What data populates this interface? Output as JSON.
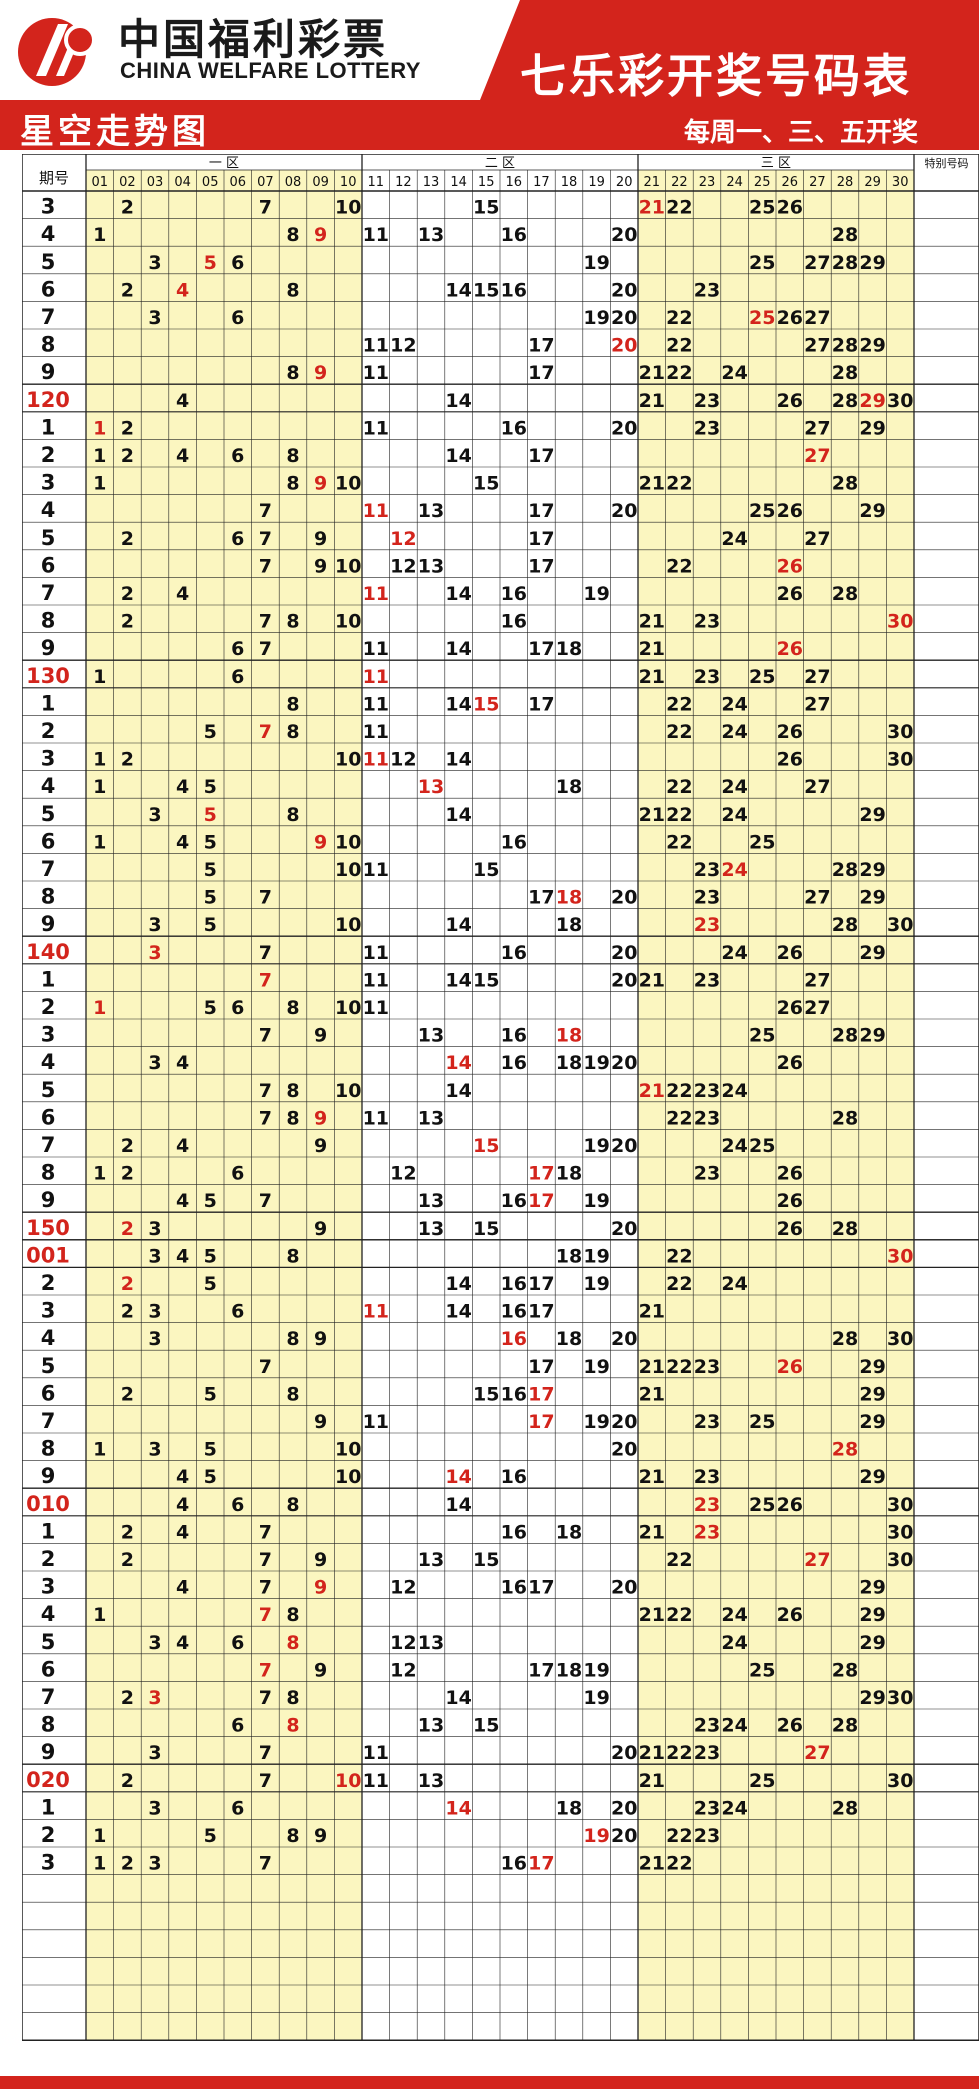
{
  "header": {
    "logo_cn": "中国福利彩票",
    "logo_en": "CHINA WELFARE LOTTERY",
    "title": "七乐彩开奖号码表",
    "schedule": "每周一、三、五开奖",
    "subtitle": "星空走势图"
  },
  "table": {
    "period_header": "期号",
    "zone_labels": [
      "一 区",
      "二 区",
      "三 区"
    ],
    "special_header": "特别号码",
    "column_numbers": [
      "01",
      "02",
      "03",
      "04",
      "05",
      "06",
      "07",
      "08",
      "09",
      "10",
      "11",
      "12",
      "13",
      "14",
      "15",
      "16",
      "17",
      "18",
      "19",
      "20",
      "21",
      "22",
      "23",
      "24",
      "25",
      "26",
      "27",
      "28",
      "29",
      "30"
    ],
    "rows": [
      {
        "p": "3",
        "n": [
          2,
          7,
          10,
          15,
          21,
          22,
          25,
          26
        ],
        "s": 21
      },
      {
        "p": "4",
        "n": [
          1,
          8,
          9,
          11,
          13,
          16,
          20,
          28
        ],
        "s": 9
      },
      {
        "p": "5",
        "n": [
          3,
          5,
          6,
          19,
          25,
          27,
          28,
          29
        ],
        "s": 5
      },
      {
        "p": "6",
        "n": [
          2,
          4,
          8,
          14,
          15,
          16,
          20,
          23
        ],
        "s": 4
      },
      {
        "p": "7",
        "n": [
          3,
          6,
          19,
          20,
          22,
          25,
          26,
          27
        ],
        "s": 25
      },
      {
        "p": "8",
        "n": [
          11,
          12,
          17,
          20,
          22,
          27,
          28,
          29
        ],
        "s": 20
      },
      {
        "p": "9",
        "n": [
          8,
          9,
          11,
          17,
          21,
          22,
          24,
          28
        ],
        "s": 9
      },
      {
        "p": "120",
        "n": [
          4,
          14,
          21,
          23,
          26,
          28,
          29,
          30
        ],
        "s": 29,
        "red": true
      },
      {
        "p": "1",
        "n": [
          1,
          2,
          11,
          16,
          20,
          23,
          27,
          29
        ],
        "s": 1
      },
      {
        "p": "2",
        "n": [
          1,
          2,
          4,
          6,
          8,
          14,
          17,
          27
        ],
        "s": 27
      },
      {
        "p": "3",
        "n": [
          1,
          8,
          9,
          10,
          15,
          21,
          22,
          28
        ],
        "s": 9
      },
      {
        "p": "4",
        "n": [
          7,
          11,
          13,
          17,
          20,
          25,
          26,
          29
        ],
        "s": 11
      },
      {
        "p": "5",
        "n": [
          2,
          6,
          7,
          9,
          12,
          17,
          24,
          27
        ],
        "s": 12
      },
      {
        "p": "6",
        "n": [
          7,
          9,
          10,
          12,
          13,
          17,
          22,
          26
        ],
        "s": 26
      },
      {
        "p": "7",
        "n": [
          2,
          4,
          11,
          14,
          16,
          19,
          26,
          28
        ],
        "s": 11
      },
      {
        "p": "8",
        "n": [
          2,
          7,
          8,
          10,
          16,
          21,
          23,
          30
        ],
        "s": 30
      },
      {
        "p": "9",
        "n": [
          6,
          7,
          11,
          14,
          17,
          18,
          21,
          26
        ],
        "s": 26
      },
      {
        "p": "130",
        "n": [
          1,
          6,
          11,
          21,
          23,
          25,
          27
        ],
        "s": 11,
        "red": true
      },
      {
        "p": "1",
        "n": [
          8,
          11,
          14,
          15,
          17,
          22,
          24,
          27
        ],
        "s": 15
      },
      {
        "p": "2",
        "n": [
          5,
          7,
          8,
          11,
          22,
          24,
          26,
          30
        ],
        "s": 7
      },
      {
        "p": "3",
        "n": [
          1,
          2,
          10,
          11,
          12,
          14,
          26,
          30
        ],
        "s": 11
      },
      {
        "p": "4",
        "n": [
          1,
          4,
          5,
          13,
          18,
          22,
          24,
          27
        ],
        "s": 13
      },
      {
        "p": "5",
        "n": [
          3,
          5,
          8,
          14,
          21,
          22,
          24,
          29
        ],
        "s": 5
      },
      {
        "p": "6",
        "n": [
          1,
          4,
          5,
          9,
          10,
          16,
          22,
          25
        ],
        "s": 9
      },
      {
        "p": "7",
        "n": [
          5,
          10,
          11,
          15,
          23,
          24,
          28,
          29
        ],
        "s": 24
      },
      {
        "p": "8",
        "n": [
          5,
          7,
          17,
          18,
          20,
          23,
          27,
          29
        ],
        "s": 18
      },
      {
        "p": "9",
        "n": [
          3,
          5,
          10,
          14,
          18,
          23,
          28,
          30
        ],
        "s": 23
      },
      {
        "p": "140",
        "n": [
          3,
          7,
          11,
          16,
          20,
          24,
          26,
          29
        ],
        "s": 3,
        "red": true
      },
      {
        "p": "1",
        "n": [
          7,
          11,
          14,
          15,
          20,
          21,
          23,
          27
        ],
        "s": 7
      },
      {
        "p": "2",
        "n": [
          1,
          5,
          6,
          8,
          10,
          11,
          26,
          27
        ],
        "s": 1
      },
      {
        "p": "3",
        "n": [
          7,
          9,
          13,
          16,
          18,
          25,
          28,
          29
        ],
        "s": 18
      },
      {
        "p": "4",
        "n": [
          3,
          4,
          14,
          16,
          18,
          19,
          20,
          26
        ],
        "s": 14
      },
      {
        "p": "5",
        "n": [
          7,
          8,
          10,
          14,
          21,
          22,
          23,
          24
        ],
        "s": 21
      },
      {
        "p": "6",
        "n": [
          7,
          8,
          9,
          11,
          13,
          22,
          23,
          28
        ],
        "s": 9
      },
      {
        "p": "7",
        "n": [
          2,
          4,
          9,
          15,
          19,
          20,
          24,
          25
        ],
        "s": 15
      },
      {
        "p": "8",
        "n": [
          1,
          2,
          6,
          12,
          17,
          18,
          23,
          26
        ],
        "s": 17
      },
      {
        "p": "9",
        "n": [
          4,
          5,
          7,
          13,
          16,
          17,
          19,
          26
        ],
        "s": 17
      },
      {
        "p": "150",
        "n": [
          2,
          3,
          9,
          13,
          15,
          20,
          26,
          28
        ],
        "s": 2,
        "red": true
      },
      {
        "p": "001",
        "n": [
          3,
          4,
          5,
          8,
          18,
          19,
          22,
          30
        ],
        "s": 30,
        "red": true
      },
      {
        "p": "2",
        "n": [
          2,
          5,
          14,
          16,
          17,
          19,
          22,
          24
        ],
        "s": 2
      },
      {
        "p": "3",
        "n": [
          2,
          3,
          6,
          11,
          14,
          16,
          17,
          21
        ],
        "s": 11
      },
      {
        "p": "4",
        "n": [
          3,
          8,
          9,
          16,
          18,
          20,
          28,
          30
        ],
        "s": 16
      },
      {
        "p": "5",
        "n": [
          7,
          17,
          19,
          21,
          22,
          23,
          26,
          29
        ],
        "s": 26
      },
      {
        "p": "6",
        "n": [
          2,
          5,
          8,
          15,
          16,
          17,
          21,
          29
        ],
        "s": 17
      },
      {
        "p": "7",
        "n": [
          9,
          11,
          17,
          19,
          20,
          23,
          25,
          29
        ],
        "s": 17
      },
      {
        "p": "8",
        "n": [
          1,
          3,
          5,
          10,
          20,
          28
        ],
        "s": 28
      },
      {
        "p": "9",
        "n": [
          4,
          5,
          10,
          14,
          16,
          21,
          23,
          29
        ],
        "s": 14
      },
      {
        "p": "010",
        "n": [
          4,
          6,
          8,
          14,
          23,
          25,
          26,
          30
        ],
        "s": 23,
        "red": true
      },
      {
        "p": "1",
        "n": [
          2,
          4,
          7,
          16,
          18,
          21,
          23,
          30
        ],
        "s": 23
      },
      {
        "p": "2",
        "n": [
          2,
          7,
          9,
          13,
          15,
          22,
          27,
          30
        ],
        "s": 27
      },
      {
        "p": "3",
        "n": [
          4,
          7,
          9,
          12,
          16,
          17,
          20,
          29
        ],
        "s": 9
      },
      {
        "p": "4",
        "n": [
          1,
          7,
          8,
          21,
          22,
          24,
          26,
          29
        ],
        "s": 7
      },
      {
        "p": "5",
        "n": [
          3,
          4,
          6,
          8,
          12,
          13,
          24,
          29
        ],
        "s": 8
      },
      {
        "p": "6",
        "n": [
          7,
          9,
          12,
          17,
          18,
          19,
          25,
          28
        ],
        "s": 7
      },
      {
        "p": "7",
        "n": [
          2,
          3,
          7,
          8,
          14,
          19,
          29,
          30
        ],
        "s": 3
      },
      {
        "p": "8",
        "n": [
          6,
          8,
          13,
          15,
          23,
          24,
          26,
          28
        ],
        "s": 8
      },
      {
        "p": "9",
        "n": [
          3,
          7,
          11,
          20,
          21,
          22,
          23,
          27
        ],
        "s": 27
      },
      {
        "p": "020",
        "n": [
          2,
          7,
          10,
          11,
          13,
          21,
          25,
          30
        ],
        "s": 10,
        "red": true
      },
      {
        "p": "1",
        "n": [
          3,
          6,
          14,
          18,
          20,
          23,
          24,
          28
        ],
        "s": 14
      },
      {
        "p": "2",
        "n": [
          1,
          5,
          8,
          9,
          19,
          20,
          22,
          23
        ],
        "s": 19
      },
      {
        "p": "3",
        "n": [
          1,
          2,
          3,
          7,
          16,
          17,
          21,
          22
        ],
        "s": 17
      }
    ],
    "empty_rows": 6
  },
  "colors": {
    "red": "#d3241c",
    "yellow": "#fbf6c0",
    "grid": "#222222",
    "number": "#111111"
  }
}
